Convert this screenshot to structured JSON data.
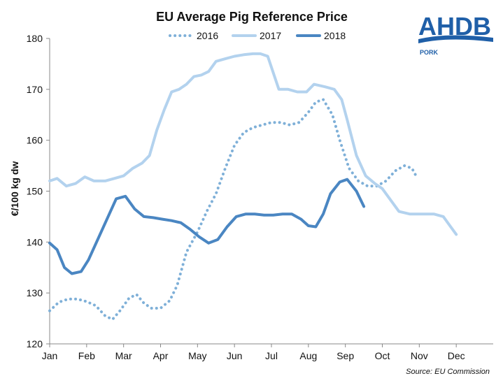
{
  "chart_data": {
    "type": "line",
    "title": "EU Average Pig Reference Price",
    "ylabel": "€/100 kg dw",
    "xlabel": "",
    "ylim": [
      120,
      180
    ],
    "yticks": [
      "120",
      "130",
      "140",
      "150",
      "160",
      "170",
      "180"
    ],
    "categories": [
      "Jan",
      "Feb",
      "Mar",
      "Apr",
      "May",
      "Jun",
      "Jul",
      "Aug",
      "Sep",
      "Oct",
      "Nov",
      "Dec"
    ],
    "grid": false,
    "legend_position": "top",
    "series": [
      {
        "name": "2016",
        "style": "dotted",
        "color": "#7fb0d8",
        "points": [
          [
            0.0,
            126.5
          ],
          [
            0.25,
            128.2
          ],
          [
            0.5,
            128.8
          ],
          [
            0.75,
            128.8
          ],
          [
            1.0,
            128.3
          ],
          [
            1.25,
            127.5
          ],
          [
            1.5,
            125.5
          ],
          [
            1.7,
            124.8
          ],
          [
            1.9,
            126.5
          ],
          [
            2.15,
            129.0
          ],
          [
            2.35,
            129.7
          ],
          [
            2.55,
            128.0
          ],
          [
            2.75,
            127.0
          ],
          [
            3.0,
            127.0
          ],
          [
            3.25,
            128.5
          ],
          [
            3.45,
            131.5
          ],
          [
            3.7,
            138.0
          ],
          [
            4.0,
            142.0
          ],
          [
            4.25,
            146.0
          ],
          [
            4.5,
            149.5
          ],
          [
            4.75,
            154.5
          ],
          [
            5.0,
            159.0
          ],
          [
            5.25,
            161.5
          ],
          [
            5.5,
            162.5
          ],
          [
            5.75,
            163.0
          ],
          [
            6.0,
            163.5
          ],
          [
            6.25,
            163.5
          ],
          [
            6.5,
            163.0
          ],
          [
            6.75,
            163.5
          ],
          [
            7.0,
            165.5
          ],
          [
            7.2,
            167.5
          ],
          [
            7.4,
            168.0
          ],
          [
            7.65,
            165.0
          ],
          [
            7.85,
            160.0
          ],
          [
            8.1,
            154.5
          ],
          [
            8.35,
            152.0
          ],
          [
            8.6,
            151.0
          ],
          [
            8.85,
            151.0
          ],
          [
            9.1,
            152.0
          ],
          [
            9.35,
            154.0
          ],
          [
            9.6,
            155.0
          ],
          [
            9.8,
            154.5
          ],
          [
            9.95,
            152.5
          ]
        ]
      },
      {
        "name": "2017",
        "style": "solid",
        "color": "#b3d2ee",
        "points": [
          [
            0.0,
            152.0
          ],
          [
            0.2,
            152.5
          ],
          [
            0.45,
            151.0
          ],
          [
            0.7,
            151.5
          ],
          [
            0.95,
            152.8
          ],
          [
            1.2,
            152.0
          ],
          [
            1.5,
            152.0
          ],
          [
            1.75,
            152.5
          ],
          [
            2.0,
            153.0
          ],
          [
            2.25,
            154.5
          ],
          [
            2.5,
            155.5
          ],
          [
            2.7,
            157.0
          ],
          [
            2.9,
            162.0
          ],
          [
            3.1,
            166.0
          ],
          [
            3.3,
            169.5
          ],
          [
            3.5,
            170.0
          ],
          [
            3.7,
            171.0
          ],
          [
            3.9,
            172.5
          ],
          [
            4.1,
            172.8
          ],
          [
            4.3,
            173.5
          ],
          [
            4.5,
            175.5
          ],
          [
            4.75,
            176.0
          ],
          [
            5.0,
            176.5
          ],
          [
            5.25,
            176.8
          ],
          [
            5.5,
            177.0
          ],
          [
            5.7,
            177.0
          ],
          [
            5.9,
            176.5
          ],
          [
            6.2,
            170.0
          ],
          [
            6.45,
            170.0
          ],
          [
            6.7,
            169.5
          ],
          [
            6.95,
            169.5
          ],
          [
            7.15,
            171.0
          ],
          [
            7.45,
            170.5
          ],
          [
            7.7,
            170.0
          ],
          [
            7.9,
            168.0
          ],
          [
            8.05,
            164.0
          ],
          [
            8.3,
            157.0
          ],
          [
            8.55,
            153.0
          ],
          [
            8.8,
            151.5
          ],
          [
            9.0,
            150.5
          ],
          [
            9.25,
            148.0
          ],
          [
            9.45,
            146.0
          ],
          [
            9.75,
            145.5
          ],
          [
            10.1,
            145.5
          ],
          [
            10.4,
            145.5
          ],
          [
            10.65,
            145.0
          ],
          [
            10.85,
            143.0
          ],
          [
            11.0,
            141.5
          ]
        ]
      },
      {
        "name": "2018",
        "style": "solid",
        "color": "#4a86c2",
        "points": [
          [
            0.0,
            139.8
          ],
          [
            0.2,
            138.5
          ],
          [
            0.4,
            135.0
          ],
          [
            0.6,
            133.8
          ],
          [
            0.85,
            134.2
          ],
          [
            1.05,
            136.5
          ],
          [
            1.3,
            140.5
          ],
          [
            1.55,
            144.5
          ],
          [
            1.8,
            148.5
          ],
          [
            2.05,
            149.0
          ],
          [
            2.3,
            146.5
          ],
          [
            2.55,
            145.0
          ],
          [
            2.8,
            144.8
          ],
          [
            3.05,
            144.5
          ],
          [
            3.3,
            144.2
          ],
          [
            3.55,
            143.8
          ],
          [
            3.8,
            142.5
          ],
          [
            4.05,
            141.0
          ],
          [
            4.3,
            139.8
          ],
          [
            4.55,
            140.5
          ],
          [
            4.8,
            143.0
          ],
          [
            5.05,
            145.0
          ],
          [
            5.3,
            145.5
          ],
          [
            5.55,
            145.5
          ],
          [
            5.8,
            145.3
          ],
          [
            6.05,
            145.3
          ],
          [
            6.3,
            145.5
          ],
          [
            6.55,
            145.5
          ],
          [
            6.8,
            144.5
          ],
          [
            7.0,
            143.2
          ],
          [
            7.2,
            143.0
          ],
          [
            7.4,
            145.5
          ],
          [
            7.6,
            149.5
          ],
          [
            7.85,
            151.8
          ],
          [
            8.05,
            152.3
          ],
          [
            8.3,
            150.0
          ],
          [
            8.5,
            147.0
          ]
        ]
      }
    ]
  },
  "logo": {
    "name": "AHDB",
    "sub": "PORK"
  },
  "source": "Source: EU Commission"
}
